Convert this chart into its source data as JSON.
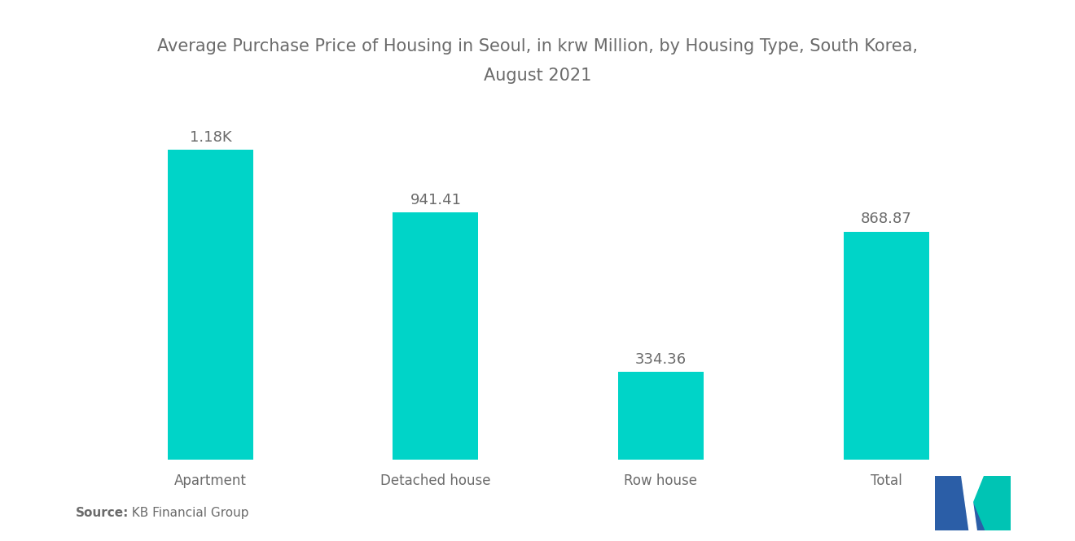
{
  "title_line1": "Average Purchase Price of Housing in Seoul, in krw Million, by Housing Type, South Korea,",
  "title_line2": "August 2021",
  "categories": [
    "Apartment",
    "Detached house",
    "Row house",
    "Total"
  ],
  "values": [
    1180.0,
    941.41,
    334.36,
    868.87
  ],
  "labels": [
    "1.18K",
    "941.41",
    "334.36",
    "868.87"
  ],
  "bar_color": "#00D4C8",
  "background_color": "#FFFFFF",
  "title_fontsize": 15,
  "label_fontsize": 13,
  "tick_fontsize": 12,
  "source_bold": "Source:",
  "source_normal": "  KB Financial Group",
  "ylim": [
    0,
    1400
  ],
  "bar_width": 0.38,
  "text_color": "#6b6b6b",
  "logo_blue": "#2B5EA7",
  "logo_teal": "#00C4B4"
}
